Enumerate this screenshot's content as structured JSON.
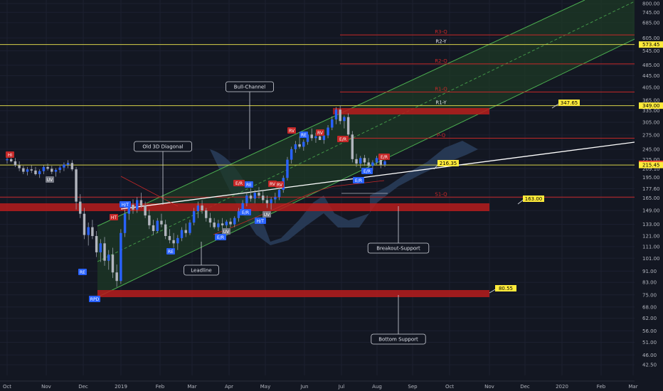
{
  "chart_data": {
    "type": "candlestick",
    "colors": {
      "background": "#131722",
      "up": "#2962ff",
      "down": "#b2b5be",
      "wick": "#9aa0ad",
      "channel_fill": "#1e3a26",
      "channel_line": "#4caf50",
      "yearly_level": "#d7d24a",
      "quarterly_level": "#c62828",
      "support_zone": "#b71c1c",
      "trendline": "#ffffff",
      "cloud": "#2a3e5c",
      "price_label": "#ffeb3b"
    },
    "y_axis": {
      "scale": "log",
      "range": [
        39,
        800
      ],
      "ticks": [
        "800.00",
        "745.00",
        "685.00",
        "605.00",
        "545.00",
        "485.00",
        "445.00",
        "405.00",
        "365.00",
        "335.00",
        "305.00",
        "275.00",
        "245.00",
        "225.00",
        "209.10",
        "195.00",
        "177.60",
        "165.00",
        "149.00",
        "133.00",
        "121.00",
        "111.00",
        "101.00",
        "91.00",
        "83.00",
        "75.00",
        "68.00",
        "62.00",
        "56.00",
        "51.00",
        "46.00",
        "42.50"
      ]
    },
    "x_axis": {
      "ticks": [
        "Oct",
        "Nov",
        "Dec",
        "2019",
        "Feb",
        "Mar",
        "Apr",
        "May",
        "Jun",
        "Jul",
        "Aug",
        "Sep",
        "Oct",
        "Nov",
        "Dec",
        "2020",
        "Feb",
        "Mar"
      ]
    },
    "price_labels": [
      {
        "value": 573.45,
        "label": "573.45",
        "color": "#ffeb3b"
      },
      {
        "value": 349.0,
        "label": "349.00",
        "color": "#ffeb3b"
      },
      {
        "value": 217.6,
        "label": "217.60",
        "color": "#e53935"
      },
      {
        "value": 215.45,
        "label": "215.45",
        "color": "#ffeb3b"
      }
    ],
    "levels": [
      {
        "name": "R3-Q",
        "value": 620,
        "type": "quarterly"
      },
      {
        "name": "R2-Y",
        "value": 573.45,
        "type": "yearly"
      },
      {
        "name": "R2-Q",
        "value": 490,
        "type": "quarterly"
      },
      {
        "name": "R1-Q",
        "value": 390,
        "type": "quarterly"
      },
      {
        "name": "R1-Y",
        "value": 349,
        "type": "yearly"
      },
      {
        "name": "P-Q",
        "value": 268,
        "type": "quarterly"
      },
      {
        "name": "P-Y",
        "value": 215.45,
        "type": "yearly"
      },
      {
        "name": "S1-Q",
        "value": 166,
        "type": "quarterly"
      }
    ],
    "callouts": [
      {
        "label": "347.65",
        "value": 347.65
      },
      {
        "label": "216.35",
        "value": 216.35
      },
      {
        "label": "163.00",
        "value": 163.0
      },
      {
        "label": "80.55",
        "value": 80.55
      }
    ],
    "annotations": [
      "Bull-Channel",
      "Old 3D Diagonal",
      "Leadline",
      "Breakout-Support",
      "Bottom Support"
    ],
    "signal_tags": [
      "HI",
      "UV",
      "RV",
      "HT",
      "H/T",
      "E/R",
      "E/R",
      "RE",
      "RV",
      "RE",
      "RV",
      "E/R",
      "E/R",
      "E/R",
      "RE",
      "UV",
      "UV",
      "H/T",
      "E/R",
      "E/R",
      "RV",
      "RPD",
      "RE"
    ],
    "candles": [
      [
        224,
        230,
        218,
        226
      ],
      [
        226,
        235,
        220,
        222
      ],
      [
        222,
        228,
        212,
        215
      ],
      [
        215,
        222,
        205,
        210
      ],
      [
        210,
        214,
        200,
        204
      ],
      [
        204,
        212,
        198,
        208
      ],
      [
        208,
        215,
        202,
        206
      ],
      [
        206,
        212,
        198,
        200
      ],
      [
        200,
        208,
        194,
        205
      ],
      [
        205,
        215,
        200,
        212
      ],
      [
        212,
        218,
        206,
        209
      ],
      [
        209,
        214,
        200,
        204
      ],
      [
        204,
        210,
        196,
        207
      ],
      [
        207,
        214,
        202,
        211
      ],
      [
        211,
        220,
        205,
        216
      ],
      [
        216,
        224,
        210,
        219
      ],
      [
        219,
        224,
        205,
        208
      ],
      [
        208,
        212,
        150,
        160
      ],
      [
        160,
        170,
        140,
        145
      ],
      [
        145,
        152,
        118,
        122
      ],
      [
        122,
        135,
        112,
        130
      ],
      [
        130,
        138,
        118,
        121
      ],
      [
        121,
        126,
        102,
        106
      ],
      [
        106,
        118,
        98,
        114
      ],
      [
        114,
        120,
        95,
        99
      ],
      [
        99,
        108,
        92,
        104
      ],
      [
        104,
        110,
        86,
        90
      ],
      [
        90,
        96,
        80,
        84
      ],
      [
        84,
        128,
        82,
        124
      ],
      [
        124,
        150,
        120,
        145
      ],
      [
        145,
        160,
        138,
        156
      ],
      [
        156,
        163,
        145,
        150
      ],
      [
        150,
        166,
        146,
        162
      ],
      [
        162,
        172,
        152,
        155
      ],
      [
        155,
        160,
        140,
        143
      ],
      [
        143,
        150,
        128,
        132
      ],
      [
        132,
        138,
        122,
        126
      ],
      [
        126,
        140,
        124,
        137
      ],
      [
        137,
        145,
        130,
        133
      ],
      [
        133,
        138,
        118,
        121
      ],
      [
        121,
        128,
        114,
        117
      ],
      [
        117,
        124,
        110,
        114
      ],
      [
        114,
        122,
        108,
        119
      ],
      [
        119,
        130,
        116,
        127
      ],
      [
        127,
        134,
        120,
        124
      ],
      [
        124,
        138,
        122,
        135
      ],
      [
        135,
        152,
        132,
        148
      ],
      [
        148,
        160,
        140,
        155
      ],
      [
        155,
        162,
        145,
        149
      ],
      [
        149,
        152,
        136,
        140
      ],
      [
        140,
        146,
        130,
        135
      ],
      [
        135,
        140,
        128,
        130
      ],
      [
        130,
        138,
        126,
        134
      ],
      [
        134,
        140,
        128,
        132
      ],
      [
        132,
        138,
        126,
        136
      ],
      [
        136,
        140,
        130,
        133
      ],
      [
        133,
        142,
        130,
        140
      ],
      [
        140,
        152,
        136,
        148
      ],
      [
        148,
        162,
        144,
        158
      ],
      [
        158,
        172,
        154,
        168
      ],
      [
        168,
        178,
        160,
        164
      ],
      [
        164,
        176,
        158,
        172
      ],
      [
        172,
        180,
        164,
        168
      ],
      [
        168,
        175,
        158,
        162
      ],
      [
        162,
        168,
        152,
        158
      ],
      [
        158,
        166,
        150,
        163
      ],
      [
        163,
        172,
        158,
        166
      ],
      [
        166,
        180,
        162,
        176
      ],
      [
        176,
        198,
        172,
        194
      ],
      [
        194,
        230,
        190,
        225
      ],
      [
        225,
        250,
        218,
        245
      ],
      [
        245,
        262,
        238,
        255
      ],
      [
        255,
        272,
        246,
        250
      ],
      [
        250,
        265,
        242,
        260
      ],
      [
        260,
        282,
        254,
        276
      ],
      [
        276,
        290,
        262,
        268
      ],
      [
        268,
        280,
        258,
        272
      ],
      [
        272,
        286,
        264,
        264
      ],
      [
        264,
        278,
        256,
        274
      ],
      [
        274,
        298,
        268,
        292
      ],
      [
        292,
        320,
        286,
        312
      ],
      [
        312,
        345,
        300,
        338
      ],
      [
        338,
        350,
        300,
        308
      ],
      [
        308,
        322,
        290,
        318
      ],
      [
        318,
        328,
        270,
        276
      ],
      [
        276,
        284,
        220,
        226
      ],
      [
        226,
        236,
        212,
        218
      ],
      [
        218,
        232,
        210,
        228
      ],
      [
        228,
        234,
        214,
        220
      ],
      [
        220,
        228,
        208,
        214
      ],
      [
        214,
        224,
        206,
        220
      ],
      [
        220,
        232,
        216,
        228
      ],
      [
        228,
        234,
        210,
        216
      ],
      [
        216,
        228,
        212,
        222
      ]
    ]
  }
}
